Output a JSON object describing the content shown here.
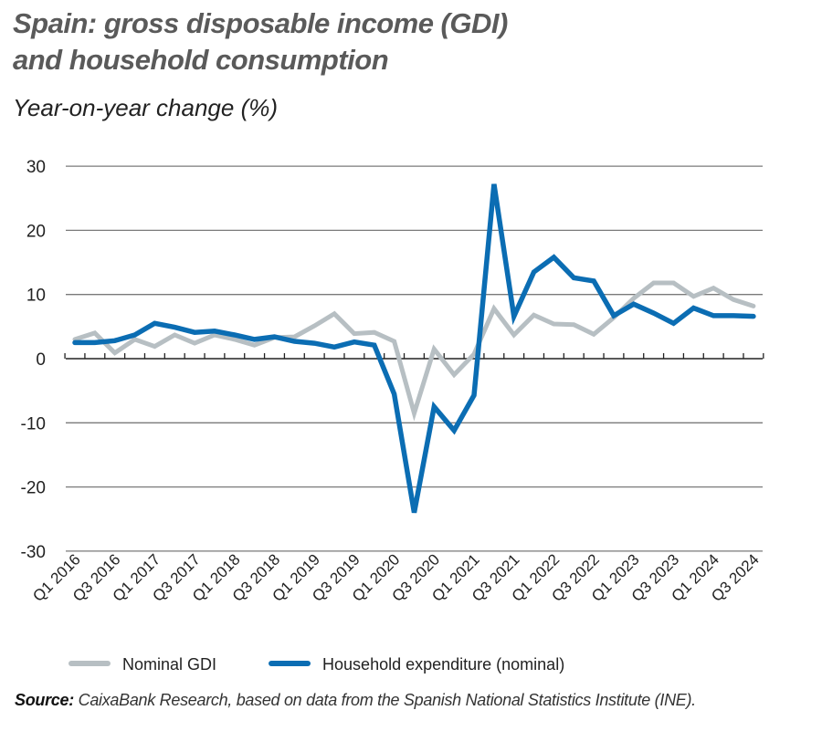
{
  "title_line1": "Spain: gross disposable income (GDI)",
  "title_line2": "and household consumption",
  "subtitle": "Year-on-year change (%)",
  "source_label": "Source:",
  "source_text": "CaixaBank Research, based on data from the Spanish National Statistics Institute (INE).",
  "chart_data": {
    "type": "line",
    "title": "Spain: gross disposable income (GDI) and household consumption",
    "ylabel": "Year-on-year change (%)",
    "ylim": [
      -30,
      30
    ],
    "yticks": [
      30,
      20,
      10,
      0,
      -10,
      -20,
      -30
    ],
    "grid": true,
    "legend": "bottom",
    "categories": [
      "Q1 2016",
      "Q2 2016",
      "Q3 2016",
      "Q4 2016",
      "Q1 2017",
      "Q2 2017",
      "Q3 2017",
      "Q4 2017",
      "Q1 2018",
      "Q2 2018",
      "Q3 2018",
      "Q4 2018",
      "Q1 2019",
      "Q2 2019",
      "Q3 2019",
      "Q4 2019",
      "Q1 2020",
      "Q2 2020",
      "Q3 2020",
      "Q4 2020",
      "Q1 2021",
      "Q2 2021",
      "Q3 2021",
      "Q4 2021",
      "Q1 2022",
      "Q2 2022",
      "Q3 2022",
      "Q4 2022",
      "Q1 2023",
      "Q2 2023",
      "Q3 2023",
      "Q4 2023",
      "Q1 2024",
      "Q2 2024",
      "Q3 2024"
    ],
    "tick_labels": [
      "Q1 2016",
      "Q3 2016",
      "Q1 2017",
      "Q3 2017",
      "Q1 2018",
      "Q3 2018",
      "Q1 2019",
      "Q3 2019",
      "Q1 2020",
      "Q3 2020",
      "Q1 2021",
      "Q3 2021",
      "Q1 2022",
      "Q3 2022",
      "Q1 2023",
      "Q3 2023",
      "Q1 2024",
      "Q3 2024"
    ],
    "series": [
      {
        "name": "Nominal GDI",
        "color": "#b7bfc3",
        "values": [
          3.0,
          4.0,
          0.9,
          3.0,
          1.9,
          3.7,
          2.4,
          3.7,
          3.0,
          2.1,
          3.3,
          3.4,
          5.1,
          7.0,
          3.9,
          4.1,
          2.7,
          -8.5,
          1.5,
          -2.5,
          0.7,
          7.8,
          3.7,
          6.8,
          5.4,
          5.3,
          3.8,
          6.4,
          9.4,
          11.8,
          11.8,
          9.7,
          11.0,
          9.2,
          8.2
        ]
      },
      {
        "name": "Household expenditure (nominal)",
        "color": "#0b6db3",
        "values": [
          2.5,
          2.5,
          2.8,
          3.7,
          5.5,
          4.9,
          4.1,
          4.3,
          3.7,
          3.0,
          3.4,
          2.7,
          2.4,
          1.8,
          2.6,
          2.1,
          -5.5,
          -24.0,
          -7.5,
          -11.2,
          -5.7,
          27.2,
          6.6,
          13.5,
          15.8,
          12.6,
          12.1,
          6.7,
          8.5,
          7.1,
          5.5,
          7.9,
          6.7,
          6.7,
          6.6
        ]
      }
    ]
  }
}
